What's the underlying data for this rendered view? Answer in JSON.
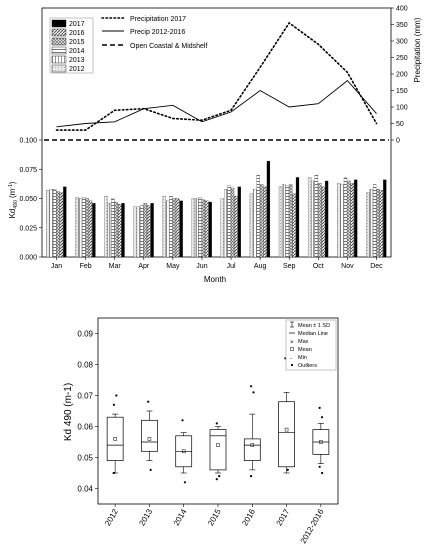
{
  "chart_data": [
    {
      "type": "bar",
      "panel": "top",
      "categories": [
        "Jan",
        "Feb",
        "Mar",
        "Apr",
        "May",
        "Jun",
        "Jul",
        "Aug",
        "Sep",
        "Oct",
        "Nov",
        "Dec"
      ],
      "xlabel": "Month",
      "ylabel_main": "Kd",
      "ylabel_sub": "490",
      "ylabel_unit": " (m",
      "ylabel_exp": "-1",
      "ylabel_close": ")",
      "y2label": "Precipitation (mm)",
      "ylim": [
        0,
        0.1
      ],
      "y_ticks": [
        "0.000",
        "0.025",
        "0.050",
        "0.075",
        "0.100"
      ],
      "y2lim": [
        0,
        400
      ],
      "y2_ticks": [
        "400",
        "350",
        "300",
        "250",
        "200",
        "150",
        "100",
        "50",
        "0"
      ],
      "legend_placement": "top-left",
      "series": [
        {
          "name": "2017",
          "fill": "#000000",
          "values": [
            0.06,
            0.046,
            0.046,
            0.046,
            0.048,
            0.047,
            0.06,
            0.082,
            0.068,
            0.065,
            0.066,
            0.066
          ]
        },
        {
          "name": "2016",
          "fill": "#707070",
          "values": [
            0.055,
            0.048,
            0.045,
            0.044,
            0.05,
            0.048,
            0.052,
            0.06,
            0.054,
            0.06,
            0.063,
            0.057
          ]
        },
        {
          "name": "2015",
          "fill": "#9a9a9a",
          "values": [
            0.056,
            0.05,
            0.047,
            0.046,
            0.05,
            0.049,
            0.059,
            0.062,
            0.062,
            0.063,
            0.065,
            0.058
          ]
        },
        {
          "name": "2014",
          "fill": "#bcbcbc",
          "values": [
            0.058,
            0.051,
            0.05,
            0.044,
            0.052,
            0.051,
            0.061,
            0.07,
            0.061,
            0.07,
            0.068,
            0.062
          ]
        },
        {
          "name": "2013",
          "fill": "#d2d2d2",
          "values": [
            0.058,
            0.05,
            0.046,
            0.043,
            0.048,
            0.05,
            0.058,
            0.058,
            0.062,
            0.065,
            0.062,
            0.058
          ]
        },
        {
          "name": "2012",
          "fill": "#e6e6e6",
          "values": [
            0.057,
            0.051,
            0.052,
            0.043,
            0.052,
            0.05,
            0.05,
            0.054,
            0.06,
            0.068,
            0.063,
            0.055
          ]
        }
      ],
      "lines": [
        {
          "name": "Precipitation 2017",
          "style": "dotted",
          "values": [
            30,
            30,
            90,
            95,
            65,
            60,
            90,
            220,
            355,
            290,
            205,
            50
          ]
        },
        {
          "name": "Precip 2012-2016",
          "style": "solid",
          "values": [
            40,
            50,
            55,
            95,
            105,
            55,
            85,
            150,
            100,
            110,
            180,
            80
          ]
        },
        {
          "name": "Open Coastal & Midshelf",
          "style": "dashed",
          "axis": "left",
          "value": 0.1
        }
      ]
    },
    {
      "type": "box",
      "panel": "bottom",
      "categories": [
        "2012",
        "2013",
        "2014",
        "2015",
        "2016",
        "2017",
        "2012-2016"
      ],
      "ylabel": "Kd 490 (m-1)",
      "ylim": [
        0.035,
        0.095
      ],
      "y_ticks": [
        "0.04",
        "0.05",
        "0.06",
        "0.07",
        "0.08",
        "0.09"
      ],
      "legend_placement": "top-right",
      "legend": [
        "Mean ± 1 SD",
        "Median Line",
        "Max",
        "Mean",
        "Min",
        "Outliers"
      ],
      "boxes": [
        {
          "q1": 0.049,
          "median": 0.054,
          "q3": 0.063,
          "mean": 0.056,
          "wlo": 0.045,
          "whi": 0.064,
          "outliers": [
            0.067,
            0.07,
            0.045
          ]
        },
        {
          "q1": 0.052,
          "median": 0.055,
          "q3": 0.062,
          "mean": 0.056,
          "wlo": 0.049,
          "whi": 0.065,
          "outliers": [
            0.068,
            0.046
          ]
        },
        {
          "q1": 0.047,
          "median": 0.052,
          "q3": 0.057,
          "mean": 0.052,
          "wlo": 0.045,
          "whi": 0.058,
          "outliers": [
            0.062,
            0.042
          ]
        },
        {
          "q1": 0.046,
          "median": 0.057,
          "q3": 0.059,
          "mean": 0.054,
          "wlo": 0.045,
          "whi": 0.06,
          "outliers": [
            0.061,
            0.044,
            0.043
          ]
        },
        {
          "q1": 0.049,
          "median": 0.054,
          "q3": 0.056,
          "mean": 0.054,
          "wlo": 0.046,
          "whi": 0.064,
          "outliers": [
            0.073,
            0.071,
            0.044
          ]
        },
        {
          "q1": 0.047,
          "median": 0.058,
          "q3": 0.068,
          "mean": 0.059,
          "wlo": 0.045,
          "whi": 0.071,
          "outliers": [
            0.082,
            0.046
          ]
        },
        {
          "q1": 0.051,
          "median": 0.055,
          "q3": 0.059,
          "mean": 0.055,
          "wlo": 0.048,
          "whi": 0.061,
          "outliers": [
            0.066,
            0.063,
            0.047,
            0.045
          ]
        }
      ]
    }
  ]
}
